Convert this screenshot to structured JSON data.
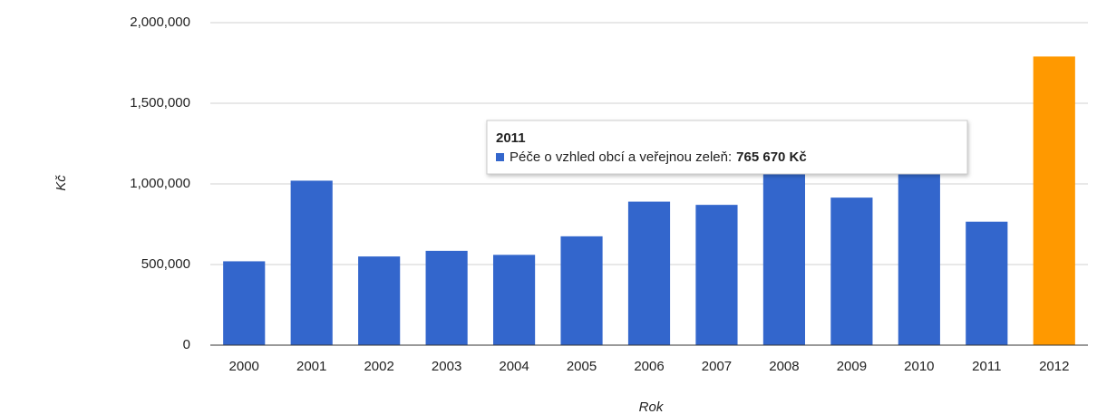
{
  "chart_data": {
    "type": "bar",
    "x_label": "Rok",
    "y_label": "Kč",
    "categories": [
      "2000",
      "2001",
      "2002",
      "2003",
      "2004",
      "2005",
      "2006",
      "2007",
      "2008",
      "2009",
      "2010",
      "2011",
      "2012"
    ],
    "values": [
      520000,
      1020000,
      550000,
      585000,
      560000,
      675000,
      890000,
      870000,
      1080000,
      915000,
      1075000,
      765670,
      1790000
    ],
    "colors": [
      "#3366cc",
      "#3366cc",
      "#3366cc",
      "#3366cc",
      "#3366cc",
      "#3366cc",
      "#3366cc",
      "#3366cc",
      "#3366cc",
      "#3366cc",
      "#3366cc",
      "#3366cc",
      "#ff9900"
    ],
    "ylim": [
      0,
      2000000
    ],
    "yticks": [
      0,
      {
        "value": 500000,
        "label": "500,000"
      },
      {
        "value": 1000000,
        "label": "1,000,000"
      },
      {
        "value": 1500000,
        "label": "1,500,000"
      },
      {
        "value": 2000000,
        "label": "2,000,000"
      }
    ],
    "grid": true,
    "tooltip": {
      "title": "2011",
      "label": "Péče o vzhled obcí a veřejnou zeleň:",
      "value_label": "765 670 Kč",
      "color": "#3366cc"
    }
  }
}
